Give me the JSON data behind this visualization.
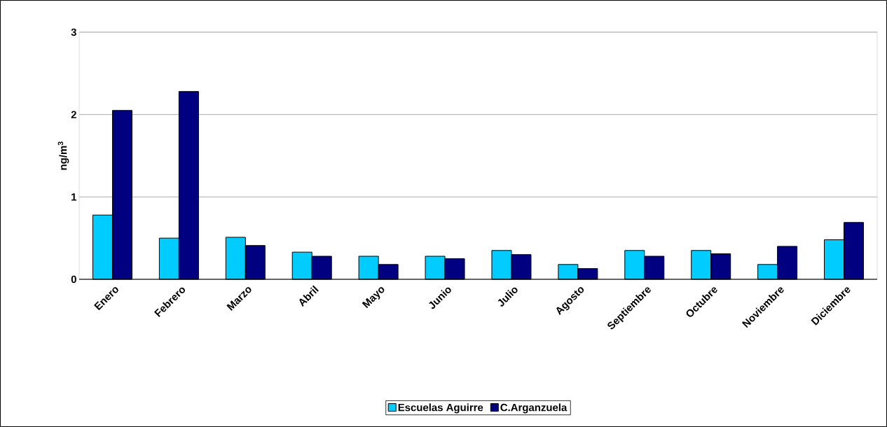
{
  "chart_data": {
    "type": "bar",
    "ylabel": "ng/m$^{3}$",
    "categories": [
      "Enero",
      "Febrero",
      "Marzo",
      "Abril",
      "Mayo",
      "Junio",
      "Julio",
      "Agosto",
      "Septiembre",
      "Octubre",
      "Noviembre",
      "Diciembre"
    ],
    "series": [
      {
        "name": "Escuelas Aguirre",
        "color": "#00ccff",
        "values": [
          0.78,
          0.5,
          0.51,
          0.33,
          0.28,
          0.28,
          0.35,
          0.18,
          0.35,
          0.35,
          0.18,
          0.48
        ]
      },
      {
        "name": "C.Arganzuela",
        "color": "#000080",
        "values": [
          2.05,
          2.28,
          0.41,
          0.28,
          0.18,
          0.25,
          0.3,
          0.13,
          0.28,
          0.31,
          0.4,
          0.69
        ]
      }
    ],
    "ylim": [
      0,
      3
    ],
    "yticks": [
      0,
      1,
      2,
      3
    ],
    "grid": "y",
    "legend": "bottom"
  }
}
